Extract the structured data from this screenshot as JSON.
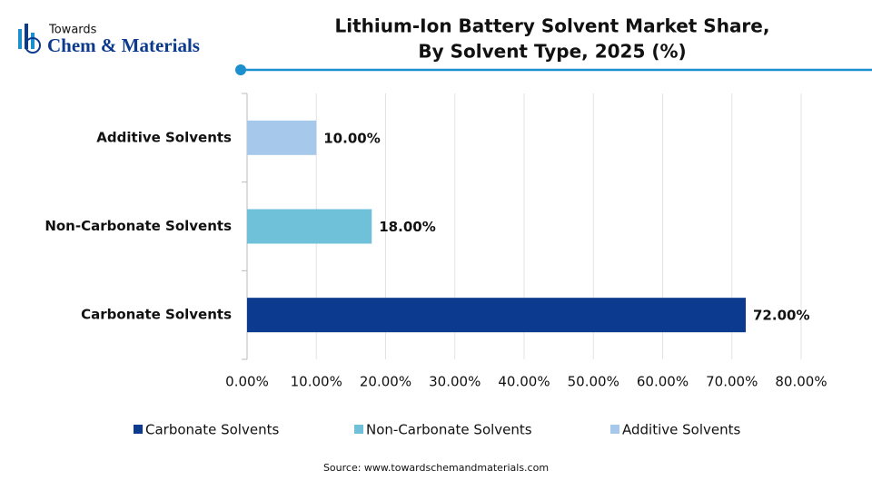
{
  "brand": {
    "top": "Towards",
    "name": "Chem & Materials"
  },
  "chart_data": {
    "type": "hbar",
    "title": [
      "Lithium-Ion Battery Solvent Market Share,",
      "By Solvent Type, 2025 (%)"
    ],
    "categories": [
      "Carbonate Solvents",
      "Non-Carbonate Solvents",
      "Additive Solvents"
    ],
    "values": [
      72,
      18,
      10
    ],
    "value_labels": [
      "72.00%",
      "18.00%",
      "10.00%"
    ],
    "colors": [
      "#0b3a8e",
      "#6ec1d9",
      "#a6c8ea"
    ],
    "xlim": [
      0,
      80
    ],
    "xticks": [
      {
        "value": 0,
        "label": "0.00%"
      },
      {
        "value": 10,
        "label": "10.00%"
      },
      {
        "value": 20,
        "label": "20.00%"
      },
      {
        "value": 30,
        "label": "30.00%"
      },
      {
        "value": 40,
        "label": "40.00%"
      },
      {
        "value": 50,
        "label": "50.00%"
      },
      {
        "value": 60,
        "label": "60.00%"
      },
      {
        "value": 70,
        "label": "70.00%"
      },
      {
        "value": 80,
        "label": "80.00%"
      }
    ],
    "grid": true,
    "legend": "bottom",
    "source": "Source: www.towardschemandmaterials.com"
  }
}
